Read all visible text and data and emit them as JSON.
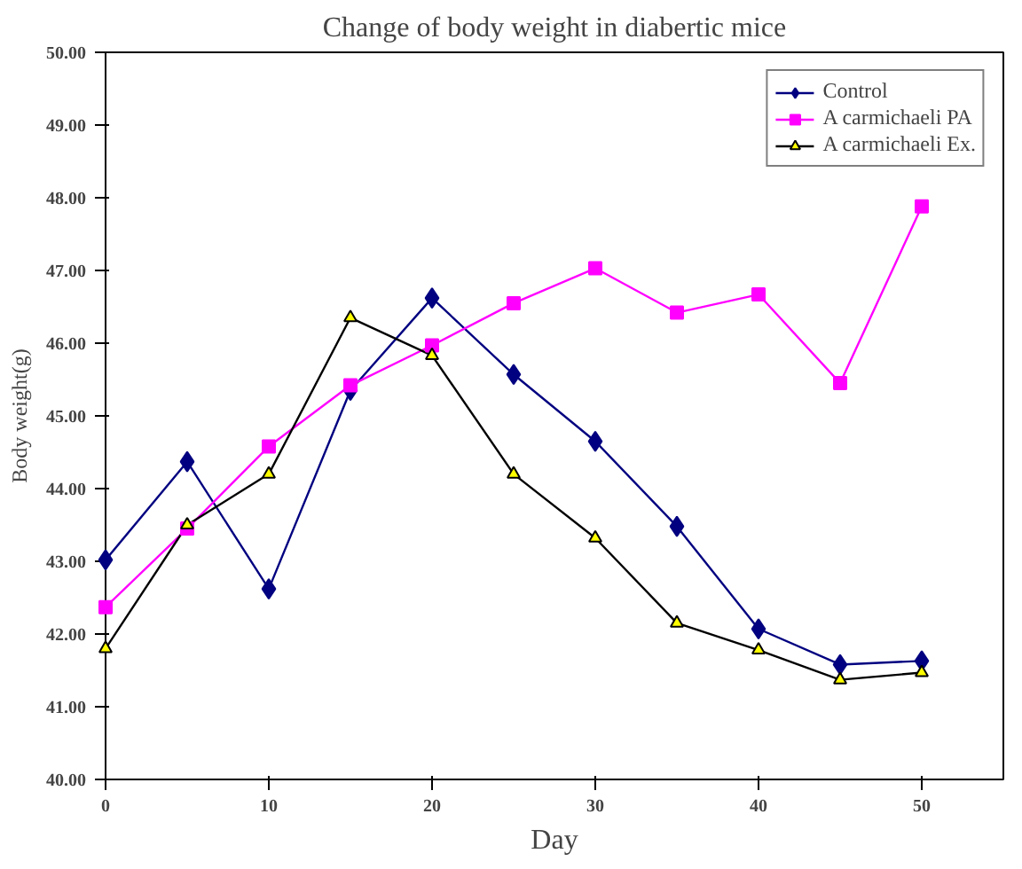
{
  "chart_data": {
    "type": "line",
    "title": "Change of body weight in diabertic mice",
    "xlabel": "Day",
    "ylabel": "Body weight(g)",
    "x": [
      0,
      5,
      10,
      15,
      20,
      25,
      30,
      35,
      40,
      45,
      50
    ],
    "xlim": [
      0,
      55
    ],
    "xticks": [
      0,
      10,
      20,
      30,
      40,
      50
    ],
    "ylim": [
      40,
      50
    ],
    "yticks": [
      {
        "value": 40,
        "label": "40.00"
      },
      {
        "value": 41,
        "label": "41.00"
      },
      {
        "value": 42,
        "label": "42.00"
      },
      {
        "value": 43,
        "label": "43.00"
      },
      {
        "value": 44,
        "label": "44.00"
      },
      {
        "value": 45,
        "label": "45.00"
      },
      {
        "value": 46,
        "label": "46.00"
      },
      {
        "value": 47,
        "label": "47.00"
      },
      {
        "value": 48,
        "label": "48.00"
      },
      {
        "value": 49,
        "label": "49.00"
      },
      {
        "value": 50,
        "label": "50.00"
      }
    ],
    "grid": false,
    "legend": "top right",
    "line_style": "solid",
    "series": [
      {
        "name": "Control",
        "color": "#000080",
        "marker": "diamond",
        "values": [
          43.02,
          44.37,
          42.62,
          45.35,
          46.62,
          45.57,
          44.65,
          43.48,
          42.07,
          41.58,
          41.63
        ]
      },
      {
        "name": "A carmichaeli PA",
        "color": "#ff00ff",
        "marker": "square",
        "values": [
          42.37,
          43.45,
          44.58,
          45.42,
          45.97,
          46.55,
          47.03,
          46.42,
          46.67,
          45.45,
          47.88
        ]
      },
      {
        "name": "A carmichaeli Ex.",
        "color": "#000000",
        "marker": "triangle",
        "values": [
          41.8,
          43.5,
          44.2,
          46.35,
          45.83,
          44.2,
          43.32,
          42.15,
          41.78,
          41.37,
          41.47
        ]
      }
    ]
  }
}
